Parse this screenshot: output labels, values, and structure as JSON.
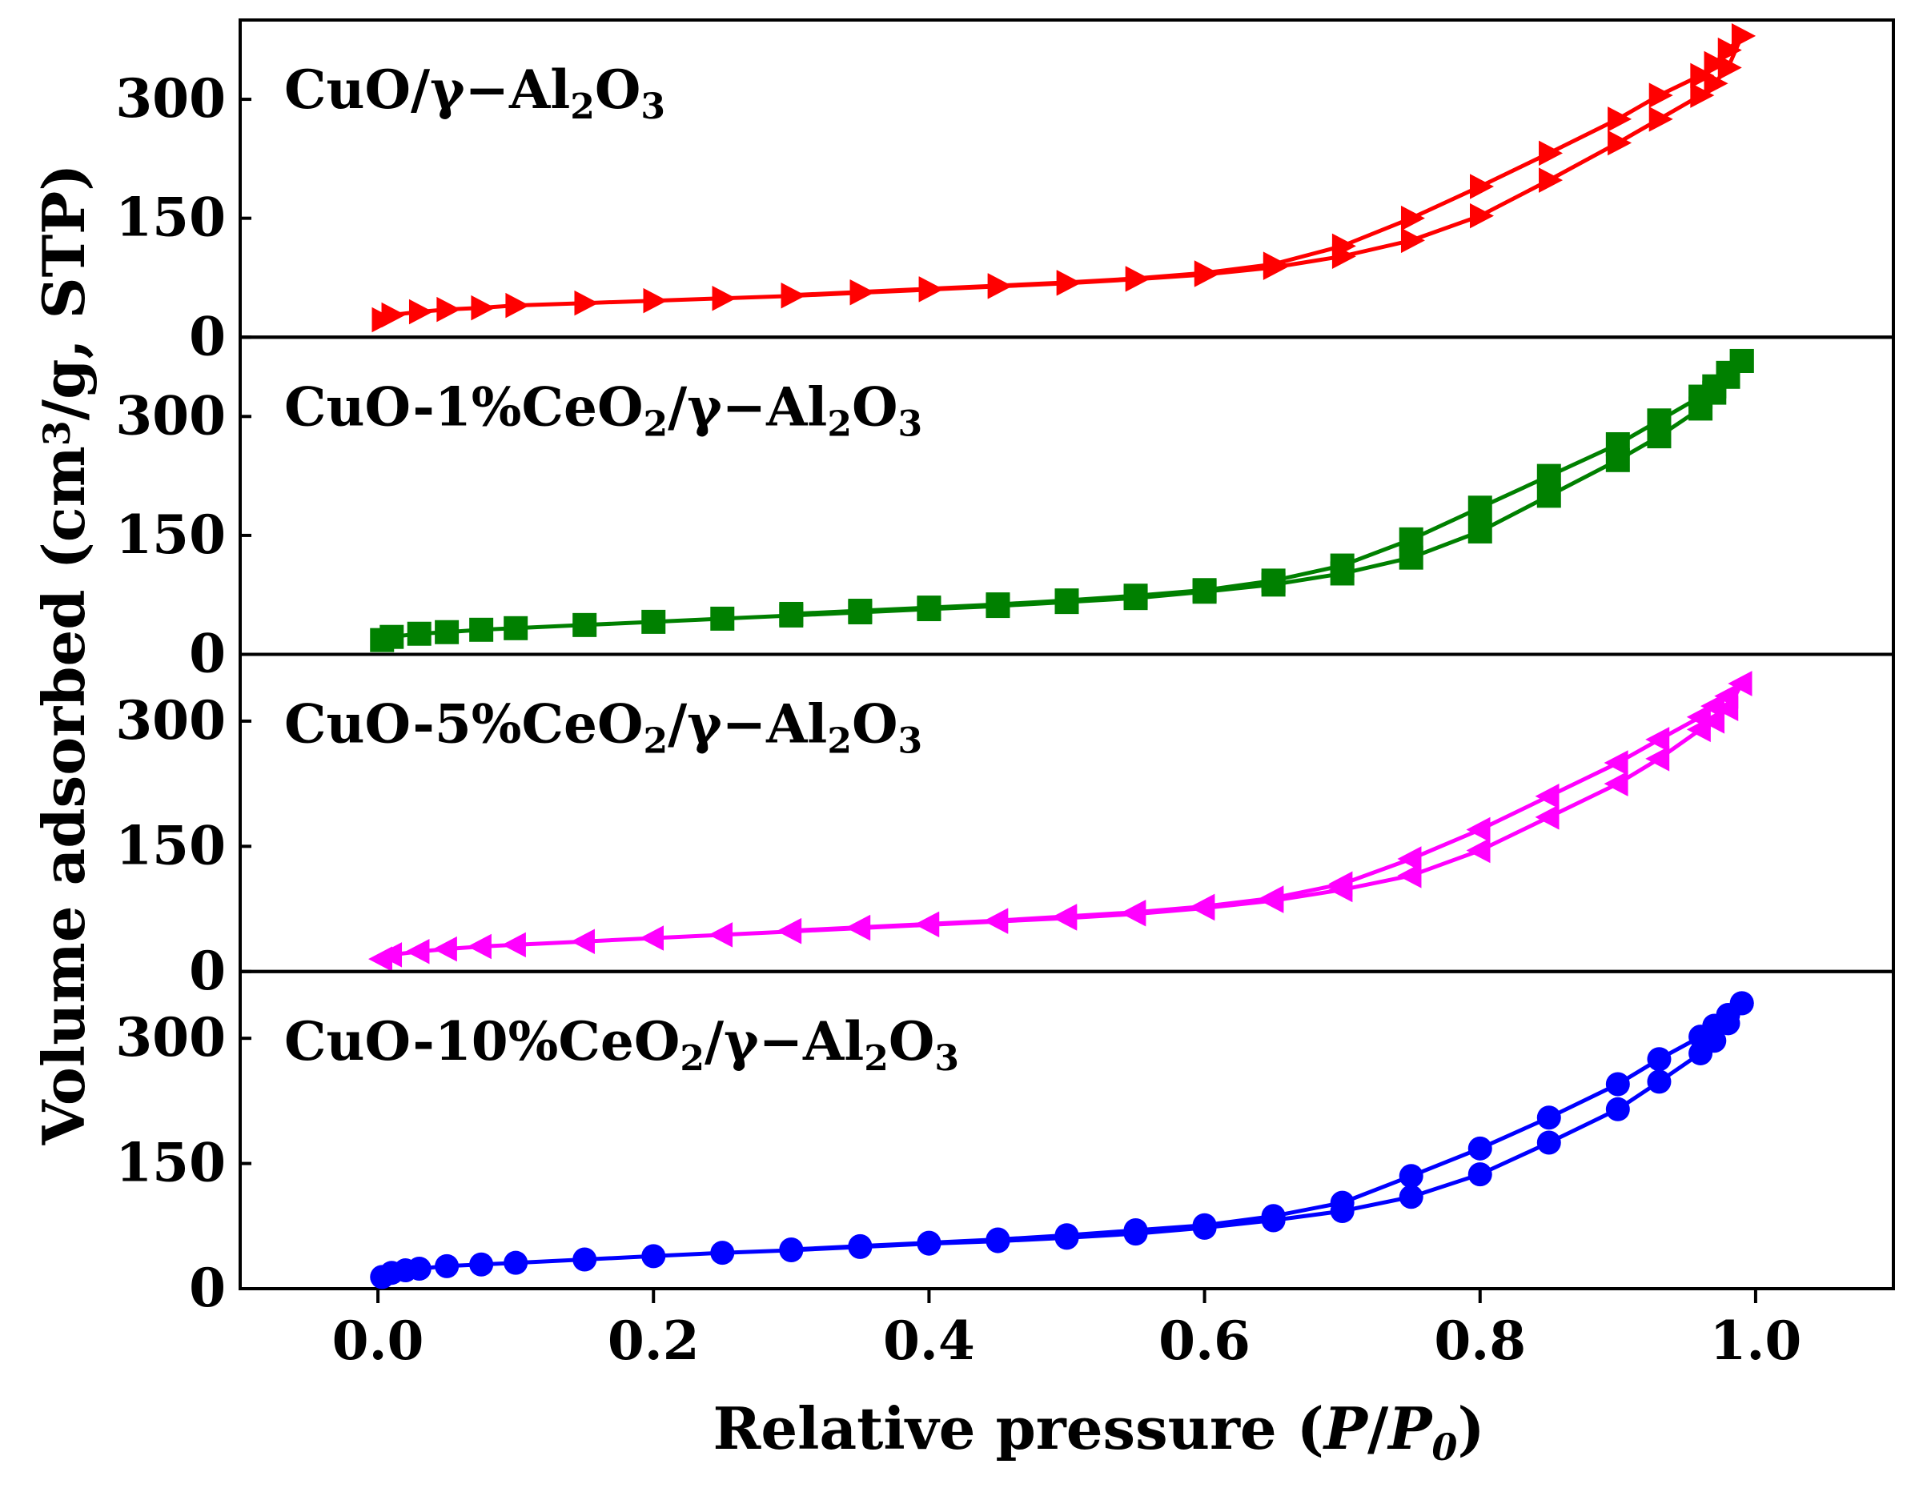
{
  "chart_data": {
    "type": "line",
    "xlabel": {
      "main": "Relative pressure (",
      "italic_1": "P",
      "slash": "/",
      "italic_2": "P",
      "sub": "0",
      "close": ")"
    },
    "ylabel": {
      "prefix": "Volume adsorbed (cm",
      "sup": "3",
      "suffix": "/g, STP)"
    },
    "xlim": [
      -0.1,
      1.1
    ],
    "x_ticks": [
      {
        "value": 0.0,
        "label": "0.0"
      },
      {
        "value": 0.2,
        "label": "0.2"
      },
      {
        "value": 0.4,
        "label": "0.4"
      },
      {
        "value": 0.6,
        "label": "0.6"
      },
      {
        "value": 0.8,
        "label": "0.8"
      },
      {
        "value": 1.0,
        "label": "1.0"
      }
    ],
    "y_ticks": [
      {
        "value": 0,
        "label": "0"
      },
      {
        "value": 150,
        "label": "150"
      },
      {
        "value": 300,
        "label": "300"
      }
    ],
    "panels": [
      {
        "label_parts": [
          {
            "t": "CuO/γ−Al",
            "s": ""
          },
          {
            "t": "2",
            "s": "sub"
          },
          {
            "t": "O",
            "s": ""
          },
          {
            "t": "3",
            "s": "sub"
          }
        ],
        "color": "#ff0000",
        "marker": "triangle-right",
        "ylim": [
          0,
          400
        ],
        "adsorption": {
          "x": [
            0.003,
            0.01,
            0.03,
            0.05,
            0.075,
            0.1,
            0.15,
            0.2,
            0.25,
            0.3,
            0.35,
            0.4,
            0.45,
            0.5,
            0.55,
            0.6,
            0.65,
            0.7,
            0.75,
            0.8,
            0.85,
            0.9,
            0.93,
            0.96,
            0.97,
            0.98,
            0.99
          ],
          "y": [
            22,
            28,
            32,
            35,
            37,
            40,
            43,
            46,
            49,
            52,
            56,
            60,
            64,
            68,
            73,
            79,
            88,
            102,
            122,
            153,
            198,
            245,
            275,
            305,
            320,
            340,
            380
          ]
        },
        "desorption": {
          "x": [
            0.99,
            0.98,
            0.97,
            0.96,
            0.93,
            0.9,
            0.85,
            0.8,
            0.75,
            0.7,
            0.65,
            0.6,
            0.55,
            0.5,
            0.45,
            0.4,
            0.35,
            0.3
          ],
          "y": [
            380,
            362,
            345,
            330,
            305,
            275,
            232,
            190,
            150,
            115,
            92,
            81,
            74,
            69,
            65,
            61,
            57,
            53
          ]
        }
      },
      {
        "label_parts": [
          {
            "t": "CuO-1%CeO",
            "s": ""
          },
          {
            "t": "2",
            "s": "sub"
          },
          {
            "t": "/γ−Al",
            "s": ""
          },
          {
            "t": "2",
            "s": "sub"
          },
          {
            "t": "O",
            "s": ""
          },
          {
            "t": "3",
            "s": "sub"
          }
        ],
        "color": "#008000",
        "marker": "square",
        "ylim": [
          0,
          400
        ],
        "adsorption": {
          "x": [
            0.003,
            0.01,
            0.03,
            0.05,
            0.075,
            0.1,
            0.15,
            0.2,
            0.25,
            0.3,
            0.35,
            0.4,
            0.45,
            0.5,
            0.55,
            0.6,
            0.65,
            0.7,
            0.75,
            0.8,
            0.85,
            0.9,
            0.93,
            0.96,
            0.97,
            0.98,
            0.99
          ],
          "y": [
            18,
            22,
            26,
            28,
            31,
            33,
            37,
            41,
            45,
            49,
            53,
            57,
            61,
            66,
            71,
            79,
            88,
            102,
            122,
            155,
            200,
            245,
            275,
            310,
            330,
            355,
            370
          ]
        },
        "desorption": {
          "x": [
            0.99,
            0.98,
            0.97,
            0.96,
            0.93,
            0.9,
            0.85,
            0.8,
            0.75,
            0.7,
            0.65,
            0.6,
            0.55,
            0.5,
            0.45,
            0.4,
            0.35,
            0.3
          ],
          "y": [
            370,
            350,
            338,
            325,
            295,
            265,
            225,
            185,
            145,
            112,
            93,
            81,
            74,
            68,
            63,
            59,
            55,
            51
          ]
        }
      },
      {
        "label_parts": [
          {
            "t": "CuO-5%CeO",
            "s": ""
          },
          {
            "t": "2",
            "s": "sub"
          },
          {
            "t": "/γ−Al",
            "s": ""
          },
          {
            "t": "2",
            "s": "sub"
          },
          {
            "t": "O",
            "s": ""
          },
          {
            "t": "3",
            "s": "sub"
          }
        ],
        "color": "#ff00ff",
        "marker": "triangle-left",
        "ylim": [
          0,
          380
        ],
        "adsorption": {
          "x": [
            0.003,
            0.01,
            0.03,
            0.05,
            0.075,
            0.1,
            0.15,
            0.2,
            0.25,
            0.3,
            0.35,
            0.4,
            0.45,
            0.5,
            0.55,
            0.6,
            0.65,
            0.7,
            0.75,
            0.8,
            0.85,
            0.9,
            0.93,
            0.96,
            0.97,
            0.98,
            0.99
          ],
          "y": [
            15,
            20,
            24,
            27,
            30,
            32,
            36,
            40,
            44,
            48,
            52,
            56,
            60,
            64,
            69,
            76,
            85,
            98,
            115,
            145,
            185,
            225,
            255,
            290,
            300,
            315,
            345
          ]
        },
        "desorption": {
          "x": [
            0.99,
            0.98,
            0.97,
            0.96,
            0.93,
            0.9,
            0.85,
            0.8,
            0.75,
            0.7,
            0.65,
            0.6,
            0.55,
            0.5,
            0.45,
            0.4,
            0.35,
            0.3
          ],
          "y": [
            345,
            330,
            318,
            305,
            278,
            250,
            210,
            170,
            135,
            105,
            88,
            78,
            71,
            66,
            61,
            57,
            53,
            49
          ]
        }
      },
      {
        "label_parts": [
          {
            "t": "CuO-10%CeO",
            "s": ""
          },
          {
            "t": "2",
            "s": "sub"
          },
          {
            "t": "/γ−Al",
            "s": ""
          },
          {
            "t": "2",
            "s": "sub"
          },
          {
            "t": "O",
            "s": ""
          },
          {
            "t": "3",
            "s": "sub"
          }
        ],
        "color": "#0000ff",
        "marker": "circle",
        "ylim": [
          0,
          380
        ],
        "adsorption": {
          "x": [
            0.003,
            0.01,
            0.02,
            0.03,
            0.05,
            0.075,
            0.1,
            0.15,
            0.2,
            0.25,
            0.3,
            0.35,
            0.4,
            0.45,
            0.5,
            0.55,
            0.6,
            0.65,
            0.7,
            0.75,
            0.8,
            0.85,
            0.9,
            0.93,
            0.96,
            0.97,
            0.98,
            0.99
          ],
          "y": [
            14,
            19,
            22,
            24,
            27,
            29,
            31,
            35,
            39,
            43,
            46,
            50,
            54,
            57,
            61,
            66,
            73,
            82,
            93,
            110,
            137,
            175,
            215,
            248,
            282,
            297,
            318,
            342
          ]
        },
        "desorption": {
          "x": [
            0.99,
            0.98,
            0.97,
            0.96,
            0.93,
            0.9,
            0.85,
            0.8,
            0.75,
            0.7,
            0.65,
            0.6,
            0.55,
            0.5,
            0.45,
            0.4,
            0.35,
            0.3
          ],
          "y": [
            342,
            328,
            315,
            302,
            275,
            245,
            205,
            168,
            135,
            103,
            87,
            76,
            70,
            64,
            59,
            55,
            51,
            47
          ]
        }
      }
    ]
  }
}
